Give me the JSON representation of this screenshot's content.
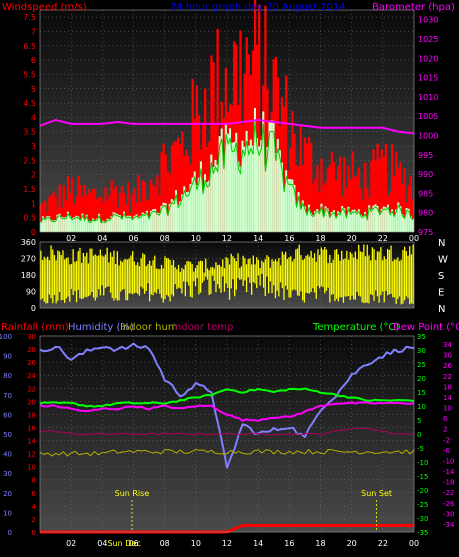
{
  "chart_data": [
    {
      "type": "bar",
      "panel": "wind-and-barometer",
      "title": "24 hour graph day  20 August 2014",
      "ylabel_left": "Windspeed (m/s)",
      "ylabel_right": "Barometer (hpa)",
      "x_ticks": [
        "02",
        "04",
        "06",
        "08",
        "10",
        "12",
        "14",
        "16",
        "18",
        "20",
        "22",
        "00"
      ],
      "y_left_ticks": [
        "0",
        "0.5",
        "1",
        "1.5",
        "2",
        "2.5",
        "3",
        "3.5",
        "4",
        "4.5",
        "5",
        "5.5",
        "6",
        "6.5",
        "7",
        "7.5"
      ],
      "y_right_ticks": [
        "975",
        "980",
        "985",
        "990",
        "995",
        "1000",
        "1005",
        "1010",
        "1015",
        "1020",
        "1025",
        "1030"
      ],
      "ylim_left": [
        0,
        7.75
      ],
      "ylim_right": [
        975,
        1032.5
      ],
      "colors": {
        "gust": "#ff0000",
        "average": "#ccffcc",
        "average_line": "#00cc00",
        "barometer": "#ff00ff"
      },
      "x": [
        0,
        1,
        2,
        3,
        4,
        5,
        6,
        7,
        8,
        9,
        10,
        11,
        12,
        13,
        14,
        15,
        16,
        17,
        18,
        19,
        20,
        21,
        22,
        23,
        24
      ],
      "series": [
        {
          "name": "gust",
          "values": [
            1.0,
            1.4,
            1.8,
            1.5,
            1.6,
            1.8,
            1.4,
            2.2,
            3.0,
            3.5,
            4.8,
            6.0,
            6.5,
            6.9,
            7.2,
            6.1,
            4.5,
            3.2,
            2.8,
            2.6,
            2.4,
            2.2,
            2.8,
            2.4,
            2.0
          ]
        },
        {
          "name": "average",
          "values": [
            0.4,
            0.5,
            0.6,
            0.5,
            0.5,
            0.6,
            0.5,
            0.6,
            0.8,
            1.3,
            1.8,
            2.4,
            3.0,
            3.2,
            3.5,
            3.0,
            1.6,
            0.8,
            0.8,
            0.7,
            0.7,
            0.7,
            0.9,
            0.8,
            0.6
          ]
        },
        {
          "name": "barometer",
          "values": [
            1002.5,
            1004.0,
            1003.0,
            1003.0,
            1003.0,
            1003.5,
            1003.0,
            1003.0,
            1003.0,
            1003.0,
            1003.0,
            1003.0,
            1003.0,
            1003.5,
            1004.0,
            1003.5,
            1003.0,
            1002.5,
            1002.0,
            1002.0,
            1002.0,
            1002.0,
            1002.0,
            1001.0,
            1000.5
          ]
        }
      ]
    },
    {
      "type": "bar",
      "panel": "wind-direction",
      "y_left_ticks": [
        "0",
        "90",
        "180",
        "270",
        "360"
      ],
      "y_right_labels": [
        "N",
        "W",
        "S",
        "E",
        "N"
      ],
      "ylim": [
        0,
        360
      ],
      "colors": {
        "direction": "#ffff00"
      },
      "note_series": "direction",
      "band_low": [
        40,
        60,
        70,
        60,
        80,
        70,
        60,
        90,
        60,
        100,
        110,
        120,
        110,
        100,
        120,
        110,
        70,
        60,
        80,
        70,
        60,
        60,
        70,
        50,
        40
      ],
      "band_high": [
        340,
        330,
        310,
        320,
        320,
        310,
        300,
        300,
        270,
        260,
        250,
        260,
        280,
        290,
        270,
        290,
        320,
        340,
        330,
        320,
        330,
        340,
        330,
        340,
        350
      ]
    },
    {
      "type": "line",
      "panel": "temperature-humidity",
      "labels": {
        "rainfall": "Rainfall (mm)",
        "humidity": "Humidity (%)",
        "indoor_hum": "Indoor hum",
        "indoor_temp": "Indoor temp",
        "temperature": "Temperature (°C)",
        "dew_point": "Dew Point (°C)"
      },
      "x_ticks": [
        "02",
        "04",
        "06",
        "08",
        "10",
        "12",
        "14",
        "16",
        "18",
        "20",
        "22",
        "00"
      ],
      "y_humidity_ticks": [
        "0",
        "10",
        "20",
        "30",
        "40",
        "50",
        "60",
        "70",
        "80",
        "90",
        "100"
      ],
      "y_rain_ticks": [
        "0",
        "2",
        "4",
        "6",
        "8",
        "10",
        "12",
        "14",
        "16",
        "18",
        "20",
        "22",
        "24",
        "26",
        "28",
        "30"
      ],
      "y_temp_ticks": [
        "35",
        "30",
        "25",
        "20",
        "15",
        "10",
        "5",
        "0",
        "-5",
        "-10",
        "-15",
        "-20",
        "-25",
        "-30",
        "-35"
      ],
      "y_dew_ticks": [
        "34",
        "30",
        "26",
        "22",
        "18",
        "14",
        "10",
        "6",
        "2",
        "-2",
        "-6",
        "-10",
        "-14",
        "-18",
        "-22",
        "-26",
        "-30",
        "-34"
      ],
      "ylim_humidity": [
        0,
        100
      ],
      "ylim_temp": [
        -35,
        35
      ],
      "annotations": [
        {
          "text": "Sun Rise",
          "x": 5.9
        },
        {
          "text": "Sun Set",
          "x": 21.6
        }
      ],
      "x_extra_label": "Sun Dec",
      "colors": {
        "humidity": "#8080ff",
        "temperature": "#00ff00",
        "dew_point": "#ff00ff",
        "rainfall": "#ff0000",
        "indoor_temp": "#b00060",
        "indoor_hum": "#b0b000"
      },
      "x": [
        0,
        1,
        2,
        3,
        4,
        5,
        6,
        7,
        8,
        9,
        10,
        11,
        12,
        13,
        14,
        15,
        16,
        17,
        18,
        19,
        20,
        21,
        22,
        23,
        24
      ],
      "series": [
        {
          "name": "Humidity (%)",
          "axis": "humidity",
          "values": [
            92,
            95,
            88,
            92,
            95,
            93,
            95,
            94,
            78,
            70,
            75,
            72,
            32,
            55,
            50,
            52,
            54,
            48,
            63,
            70,
            80,
            86,
            90,
            93,
            94
          ]
        },
        {
          "name": "Temperature (°C)",
          "axis": "temp",
          "values": [
            11,
            11,
            11,
            10,
            10,
            11,
            11,
            11,
            11,
            12,
            13,
            14,
            16,
            15,
            16,
            15,
            16,
            16,
            15,
            14,
            13,
            12,
            12,
            12,
            12
          ]
        },
        {
          "name": "Dew Point (°C)",
          "axis": "temp",
          "values": [
            10,
            10,
            9,
            8,
            9,
            9,
            10,
            9,
            10,
            9,
            10,
            10,
            7,
            5,
            5,
            6,
            6,
            8,
            10,
            11,
            11,
            11,
            11,
            11,
            11
          ]
        },
        {
          "name": "Indoor temp",
          "axis": "temp",
          "values": [
            1,
            1,
            0,
            0,
            0,
            0,
            0,
            0,
            0,
            0,
            0,
            0,
            0,
            0,
            0,
            0,
            0,
            0,
            0,
            1,
            2,
            2,
            1,
            0,
            0
          ]
        },
        {
          "name": "Indoor hum",
          "axis": "humidity",
          "values": [
            40,
            40,
            40,
            40,
            40,
            41,
            41,
            41,
            41,
            41,
            41,
            41,
            41,
            41,
            41,
            41,
            41,
            41,
            41,
            41,
            41,
            41,
            41,
            41,
            41
          ]
        },
        {
          "name": "Rainfall (mm)",
          "axis": "rain",
          "values": [
            0,
            0,
            0,
            0,
            0,
            0,
            0,
            0,
            0,
            0,
            0,
            0,
            0,
            1,
            1,
            1,
            1,
            1,
            1,
            1,
            1,
            1,
            1,
            1,
            1
          ]
        }
      ]
    }
  ]
}
